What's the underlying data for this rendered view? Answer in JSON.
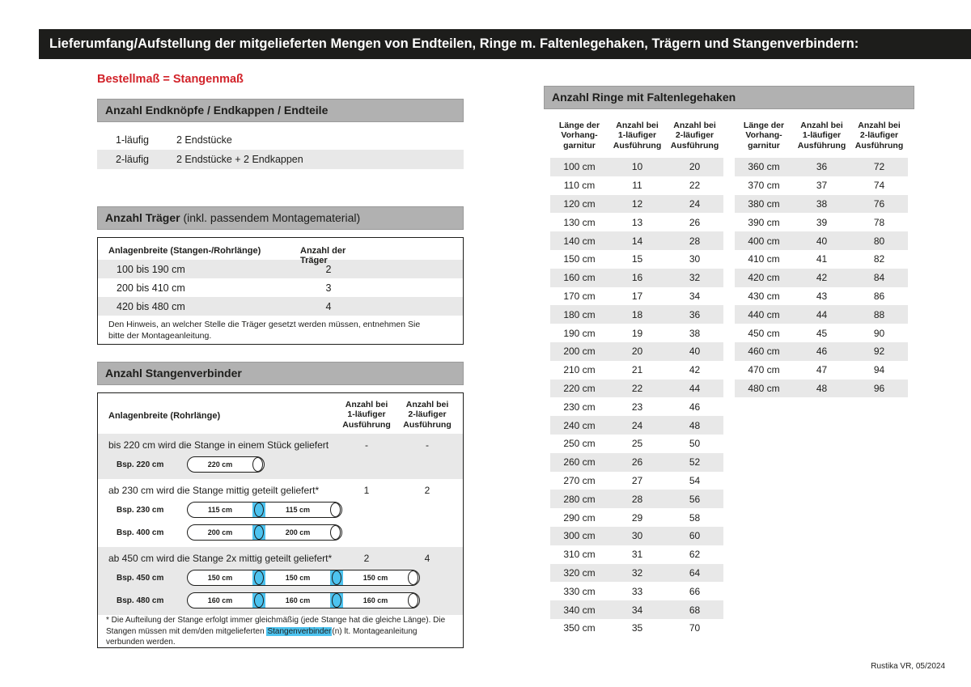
{
  "page": {
    "title": "Lieferumfang/Aufstellung der mitgelieferten Mengen von Endteilen, Ringe m. Faltenlegehaken, Trägern und Stangenverbindern:",
    "subtitle": "Bestellmaß = Stangenmaß",
    "footer": "Rustika VR, 05/2024"
  },
  "colors": {
    "accent_red": "#d2232a",
    "highlight_cyan": "#4dc3ef",
    "section_header_gray": "#b1b1b1",
    "zebra_gray": "#e8e8e8",
    "title_bar_black": "#1d1d1b"
  },
  "endteile": {
    "header": "Anzahl Endknöpfe / Endkappen / Endteile",
    "rows": [
      {
        "variant": "1-läufig",
        "content": "2 Endstücke"
      },
      {
        "variant": "2-läufig",
        "content": "2 Endstücke + 2 Endkappen"
      }
    ]
  },
  "traeger": {
    "header_bold": "Anzahl Träger",
    "header_normal": " (inkl. passendem Montagematerial)",
    "col_width": "Anlagenbreite (Stangen-/Rohrlänge)",
    "col_count": "Anzahl der Träger",
    "rows": [
      {
        "range": "100 bis 190 cm",
        "count": "2"
      },
      {
        "range": "200 bis 410 cm",
        "count": "3"
      },
      {
        "range": "420 bis 480 cm",
        "count": "4"
      }
    ],
    "note": "Den Hinweis, an welcher Stelle die Träger gesetzt werden müssen, entnehmen Sie bitte der Montageanleitung."
  },
  "verbinder": {
    "header": "Anzahl Stangenverbinder",
    "col_width": "Anlagenbreite (Rohrlänge)",
    "col_one": "Anzahl bei\n1-läufiger\nAusführung",
    "col_two": "Anzahl bei\n2-läufiger\nAusführung",
    "groups": [
      {
        "text": "bis 220 cm wird die Stange in einem Stück geliefert",
        "count_one": "-",
        "count_two": "-",
        "examples": [
          {
            "label": "Bsp. 220 cm",
            "segments": [
              "220 cm"
            ]
          }
        ]
      },
      {
        "text": "ab 230 cm wird die Stange mittig geteilt geliefert*",
        "count_one": "1",
        "count_two": "2",
        "examples": [
          {
            "label": "Bsp. 230 cm",
            "segments": [
              "115 cm",
              "115 cm"
            ]
          },
          {
            "label": "Bsp. 400 cm",
            "segments": [
              "200 cm",
              "200 cm"
            ]
          }
        ]
      },
      {
        "text": "ab 450 cm wird die Stange 2x mittig geteilt geliefert*",
        "count_one": "2",
        "count_two": "4",
        "examples": [
          {
            "label": "Bsp. 450 cm",
            "segments": [
              "150 cm",
              "150 cm",
              "150 cm"
            ]
          },
          {
            "label": "Bsp. 480 cm",
            "segments": [
              "160 cm",
              "160 cm",
              "160 cm"
            ]
          }
        ]
      }
    ],
    "footnote_pre": "* Die Aufteilung der Stange erfolgt immer gleichmäßig (jede Stange hat die gleiche Länge). Die Stangen müssen mit dem/den mitgelieferten ",
    "footnote_highlight": "Stangenverbinder",
    "footnote_post": "(n) lt. Montageanleitung verbunden werden."
  },
  "ringe": {
    "header": "Anzahl Ringe mit Faltenlegehaken",
    "col_length": "Länge der\nVorhang-\ngarnitur",
    "col_one": "Anzahl bei\n1-läufiger\nAusführung",
    "col_two": "Anzahl bei\n2-läufiger\nAusführung",
    "table_left": [
      [
        "100 cm",
        "10",
        "20"
      ],
      [
        "110 cm",
        "11",
        "22"
      ],
      [
        "120 cm",
        "12",
        "24"
      ],
      [
        "130 cm",
        "13",
        "26"
      ],
      [
        "140 cm",
        "14",
        "28"
      ],
      [
        "150 cm",
        "15",
        "30"
      ],
      [
        "160 cm",
        "16",
        "32"
      ],
      [
        "170 cm",
        "17",
        "34"
      ],
      [
        "180 cm",
        "18",
        "36"
      ],
      [
        "190 cm",
        "19",
        "38"
      ],
      [
        "200 cm",
        "20",
        "40"
      ],
      [
        "210 cm",
        "21",
        "42"
      ],
      [
        "220 cm",
        "22",
        "44"
      ],
      [
        "230 cm",
        "23",
        "46"
      ],
      [
        "240 cm",
        "24",
        "48"
      ],
      [
        "250 cm",
        "25",
        "50"
      ],
      [
        "260 cm",
        "26",
        "52"
      ],
      [
        "270 cm",
        "27",
        "54"
      ],
      [
        "280 cm",
        "28",
        "56"
      ],
      [
        "290 cm",
        "29",
        "58"
      ],
      [
        "300 cm",
        "30",
        "60"
      ],
      [
        "310 cm",
        "31",
        "62"
      ],
      [
        "320 cm",
        "32",
        "64"
      ],
      [
        "330 cm",
        "33",
        "66"
      ],
      [
        "340 cm",
        "34",
        "68"
      ],
      [
        "350 cm",
        "35",
        "70"
      ]
    ],
    "table_right": [
      [
        "360 cm",
        "36",
        "72"
      ],
      [
        "370 cm",
        "37",
        "74"
      ],
      [
        "380 cm",
        "38",
        "76"
      ],
      [
        "390 cm",
        "39",
        "78"
      ],
      [
        "400 cm",
        "40",
        "80"
      ],
      [
        "410 cm",
        "41",
        "82"
      ],
      [
        "420 cm",
        "42",
        "84"
      ],
      [
        "430 cm",
        "43",
        "86"
      ],
      [
        "440 cm",
        "44",
        "88"
      ],
      [
        "450 cm",
        "45",
        "90"
      ],
      [
        "460 cm",
        "46",
        "92"
      ],
      [
        "470 cm",
        "47",
        "94"
      ],
      [
        "480 cm",
        "48",
        "96"
      ]
    ]
  }
}
